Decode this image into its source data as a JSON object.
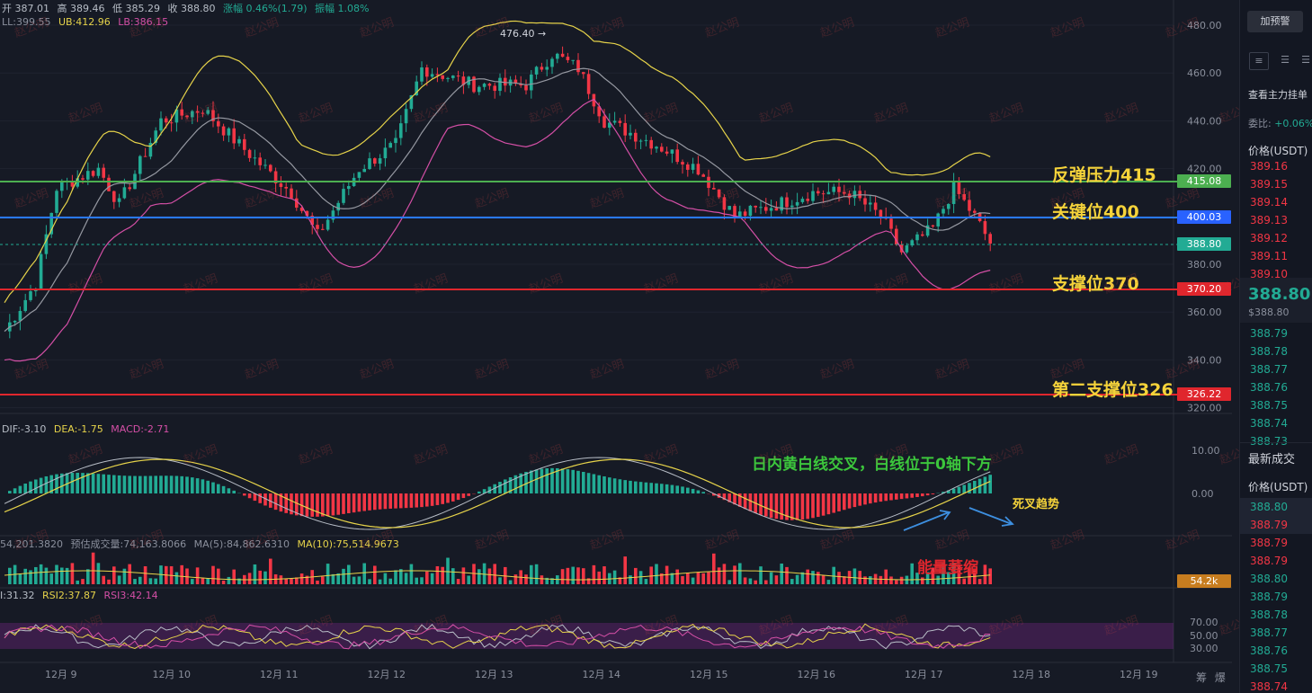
{
  "header": {
    "ohlc": [
      "开 387.01",
      "高 389.46",
      "低 385.29",
      "收 388.80",
      "涨幅 0.46%(1.79)",
      "振幅 1.08%"
    ],
    "boll": {
      "mid": "LL:399.55",
      "ub": "UB:412.96",
      "lb": "LB:386.15"
    }
  },
  "price_axis": [
    "480.00",
    "460.00",
    "440.00",
    "420.00",
    "400.00",
    "380.00",
    "360.00",
    "340.00",
    "320.00"
  ],
  "macd_axis": [
    "10.00",
    "0.00"
  ],
  "rsi_axis": [
    "70.00",
    "50.00",
    "30.00"
  ],
  "date_axis": [
    "12月 9",
    "12月 10",
    "12月 11",
    "12月 12",
    "12月 13",
    "12月 14",
    "12月 15",
    "12月 16",
    "12月 17",
    "12月 18",
    "12月 19"
  ],
  "axis_corner": [
    "筹",
    "爆"
  ],
  "high_marker": "476.40 →",
  "price_tags": {
    "resistance": {
      "text": "415.08",
      "color": "#4caf50"
    },
    "key": {
      "text": "400.03",
      "color": "#2962ff"
    },
    "current": {
      "text": "388.80",
      "color": "#22ab94"
    },
    "support1": {
      "text": "370.20",
      "color": "#e0262d"
    },
    "support2": {
      "text": "326.22",
      "color": "#e0262d"
    }
  },
  "volume_tag": {
    "text": "54.2k",
    "color": "#c77d1f"
  },
  "annotations": {
    "resistance": "反弹压力415",
    "key": "关键位400",
    "support1": "支撑位370",
    "support2": "第二支撑位326",
    "macd": "日内黄白线交叉，白线位于0轴下方",
    "death_cross": "死叉趋势",
    "volume": "能量萎缩"
  },
  "macd_header": {
    "dif": "DIF:-3.10",
    "dea": "DEA:-1.75",
    "macd": "MACD:-2.71"
  },
  "volume_header": {
    "vol": "54,201.3820",
    "est": "预估成交量:74,163.8066",
    "ma5": "MA(5):84,862.6310",
    "ma10": "MA(10):75,514.9673"
  },
  "rsi_header": {
    "rsi1": "I:31.32",
    "rsi2": "RSI2:37.87",
    "rsi3": "RSI3:42.14"
  },
  "watermark": "赵公明",
  "sidebar": {
    "add_alert": "加预警",
    "view_orders": "查看主力挂单",
    "ratio_label": "委比:",
    "ratio_value": "+0.06%",
    "price_header": "价格(USDT)",
    "asks": [
      "389.16",
      "389.15",
      "389.14",
      "389.13",
      "389.12",
      "389.11",
      "389.10"
    ],
    "last_price": "388.80",
    "last_usd": "$388.80",
    "bids": [
      "388.79",
      "388.78",
      "388.77",
      "388.76",
      "388.75",
      "388.74",
      "388.73"
    ],
    "latest_trades": "最新成交",
    "trades_header": "价格(USDT)",
    "trades": [
      {
        "p": "388.80",
        "c": "grn"
      },
      {
        "p": "388.79",
        "c": "red"
      },
      {
        "p": "388.79",
        "c": "red"
      },
      {
        "p": "388.79",
        "c": "red"
      },
      {
        "p": "388.80",
        "c": "grn"
      },
      {
        "p": "388.79",
        "c": "grn"
      },
      {
        "p": "388.78",
        "c": "grn"
      },
      {
        "p": "388.77",
        "c": "grn"
      },
      {
        "p": "388.76",
        "c": "grn"
      },
      {
        "p": "388.75",
        "c": "grn"
      },
      {
        "p": "388.74",
        "c": "red"
      }
    ]
  }
}
